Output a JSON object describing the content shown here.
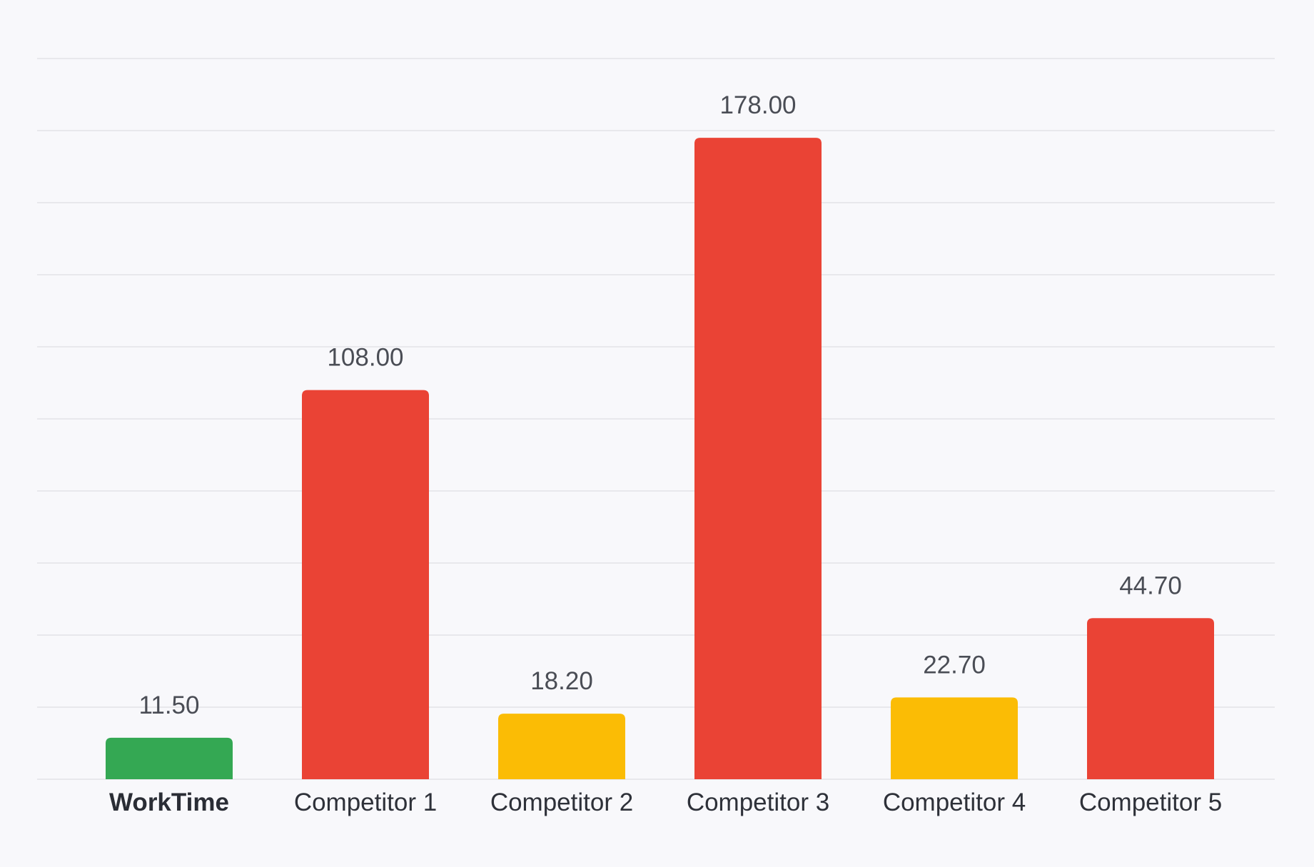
{
  "chart_data": {
    "type": "bar",
    "categories": [
      "WorkTime",
      "Competitor 1",
      "Competitor 2",
      "Competitor 3",
      "Competitor 4",
      "Competitor 5"
    ],
    "values": [
      11.5,
      108.0,
      18.2,
      178.0,
      22.7,
      44.7
    ],
    "value_labels": [
      "11.50",
      "108.00",
      "18.20",
      "178.00",
      "22.70",
      "44.70"
    ],
    "bar_colors": [
      "#34a853",
      "#ea4335",
      "#fbbc05",
      "#ea4335",
      "#fbbc05",
      "#ea4335"
    ],
    "highlighted_category": "WorkTime",
    "title": "",
    "xlabel": "",
    "ylabel": "",
    "ylim": [
      0,
      200
    ],
    "grid": true,
    "gridline_count": 10,
    "legend": "none"
  }
}
